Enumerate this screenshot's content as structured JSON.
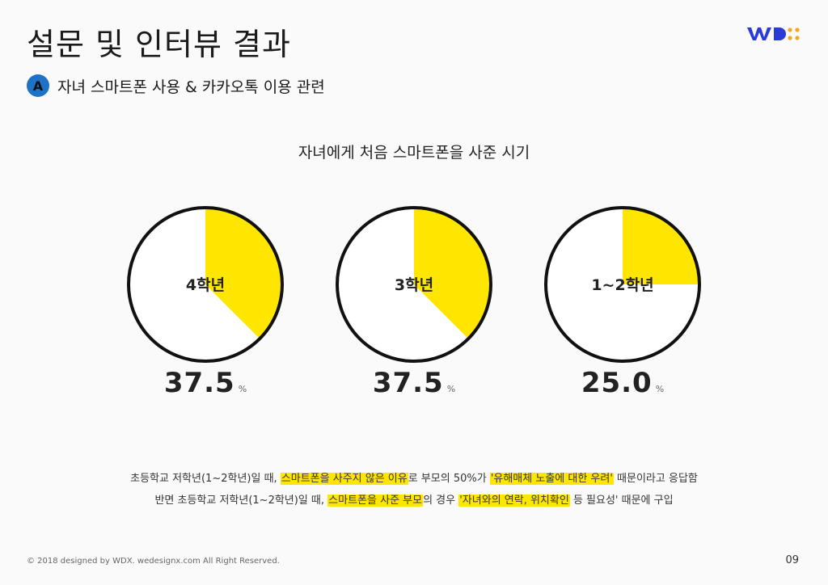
{
  "header": {
    "title": "설문 및 인터뷰 결과",
    "section_badge": "A",
    "section_label": "자녀 스마트폰 사용 & 카카오톡 이용 관련"
  },
  "colors": {
    "accent": "#ffe600",
    "badge": "#1e73c6",
    "logo_blue": "#2b3bd6",
    "logo_orange": "#f5a623"
  },
  "chart_data": {
    "type": "pie",
    "title": "자녀에게 처음 스마트폰을 사준 시기",
    "unit": "%",
    "categories": [
      "4학년",
      "3학년",
      "1~2학년"
    ],
    "values": [
      37.5,
      37.5,
      25.0
    ],
    "value_labels": [
      "37.5",
      "37.5",
      "25.0"
    ]
  },
  "notes": [
    {
      "segments": [
        {
          "text": "초등학교 저학년(1~2학년)일 때, ",
          "hl": false
        },
        {
          "text": "스마트폰을 사주지 않은 이유",
          "hl": true
        },
        {
          "text": "로 부모의 50%가 ",
          "hl": false
        },
        {
          "text": "'유해매체 노출에 대한 우려'",
          "hl": true
        },
        {
          "text": " 때문이라고 응답함",
          "hl": false
        }
      ]
    },
    {
      "segments": [
        {
          "text": "반면 초등학교 저학년(1~2학년)일 때, ",
          "hl": false
        },
        {
          "text": "스마트폰을 사준 부모",
          "hl": true
        },
        {
          "text": "의 경우 ",
          "hl": false
        },
        {
          "text": "'자녀와의 연락, 위치확인",
          "hl": true
        },
        {
          "text": " 등 필요성' 때문에 구입",
          "hl": false
        }
      ]
    }
  ],
  "footer": {
    "copyright": "© 2018 designed by WDX.  wedesignx.com  All Right Reserved.",
    "page_number": "09"
  }
}
